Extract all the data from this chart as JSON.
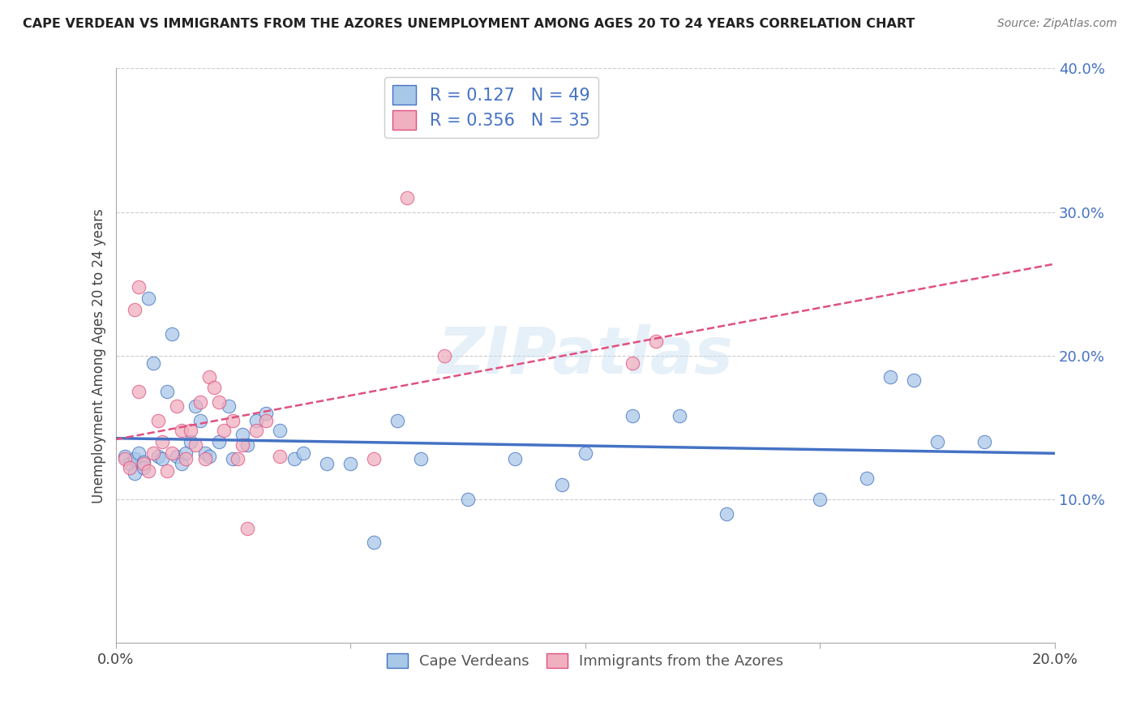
{
  "title": "CAPE VERDEAN VS IMMIGRANTS FROM THE AZORES UNEMPLOYMENT AMONG AGES 20 TO 24 YEARS CORRELATION CHART",
  "source": "Source: ZipAtlas.com",
  "ylabel": "Unemployment Among Ages 20 to 24 years",
  "xlabel": "",
  "xlim": [
    0.0,
    0.2
  ],
  "ylim": [
    0.0,
    0.4
  ],
  "xticks": [
    0.0,
    0.05,
    0.1,
    0.15,
    0.2
  ],
  "yticks": [
    0.0,
    0.1,
    0.2,
    0.3,
    0.4
  ],
  "xticklabels": [
    "0.0%",
    "",
    "",
    "",
    "20.0%"
  ],
  "yticklabels": [
    "",
    "10.0%",
    "20.0%",
    "30.0%",
    "40.0%"
  ],
  "legend_labels": [
    "Cape Verdeans",
    "Immigrants from the Azores"
  ],
  "R_blue": 0.127,
  "N_blue": 49,
  "R_pink": 0.356,
  "N_pink": 35,
  "color_blue": "#A8C8E8",
  "color_pink": "#F0B0C0",
  "line_color_blue": "#4472C4",
  "line_color_pink": "#E05080",
  "watermark": "ZIPatlas",
  "blue_scatter_x": [
    0.002,
    0.003,
    0.004,
    0.004,
    0.005,
    0.006,
    0.006,
    0.007,
    0.008,
    0.009,
    0.01,
    0.011,
    0.012,
    0.013,
    0.014,
    0.015,
    0.016,
    0.017,
    0.018,
    0.019,
    0.02,
    0.022,
    0.024,
    0.025,
    0.027,
    0.028,
    0.03,
    0.032,
    0.035,
    0.038,
    0.04,
    0.045,
    0.05,
    0.055,
    0.06,
    0.065,
    0.075,
    0.085,
    0.095,
    0.1,
    0.11,
    0.12,
    0.13,
    0.15,
    0.16,
    0.165,
    0.17,
    0.175,
    0.185
  ],
  "blue_scatter_y": [
    0.13,
    0.125,
    0.128,
    0.118,
    0.132,
    0.126,
    0.122,
    0.24,
    0.195,
    0.13,
    0.128,
    0.175,
    0.215,
    0.13,
    0.125,
    0.132,
    0.14,
    0.165,
    0.155,
    0.132,
    0.13,
    0.14,
    0.165,
    0.128,
    0.145,
    0.138,
    0.155,
    0.16,
    0.148,
    0.128,
    0.132,
    0.125,
    0.125,
    0.07,
    0.155,
    0.128,
    0.1,
    0.128,
    0.11,
    0.132,
    0.158,
    0.158,
    0.09,
    0.1,
    0.115,
    0.185,
    0.183,
    0.14,
    0.14
  ],
  "pink_scatter_x": [
    0.002,
    0.003,
    0.004,
    0.005,
    0.005,
    0.006,
    0.007,
    0.008,
    0.009,
    0.01,
    0.011,
    0.012,
    0.013,
    0.014,
    0.015,
    0.016,
    0.017,
    0.018,
    0.019,
    0.02,
    0.021,
    0.022,
    0.023,
    0.025,
    0.026,
    0.027,
    0.028,
    0.03,
    0.032,
    0.035,
    0.055,
    0.062,
    0.07,
    0.11,
    0.115
  ],
  "pink_scatter_y": [
    0.128,
    0.122,
    0.232,
    0.248,
    0.175,
    0.125,
    0.12,
    0.132,
    0.155,
    0.14,
    0.12,
    0.132,
    0.165,
    0.148,
    0.128,
    0.148,
    0.138,
    0.168,
    0.128,
    0.185,
    0.178,
    0.168,
    0.148,
    0.155,
    0.128,
    0.138,
    0.08,
    0.148,
    0.155,
    0.13,
    0.128,
    0.31,
    0.2,
    0.195,
    0.21
  ]
}
